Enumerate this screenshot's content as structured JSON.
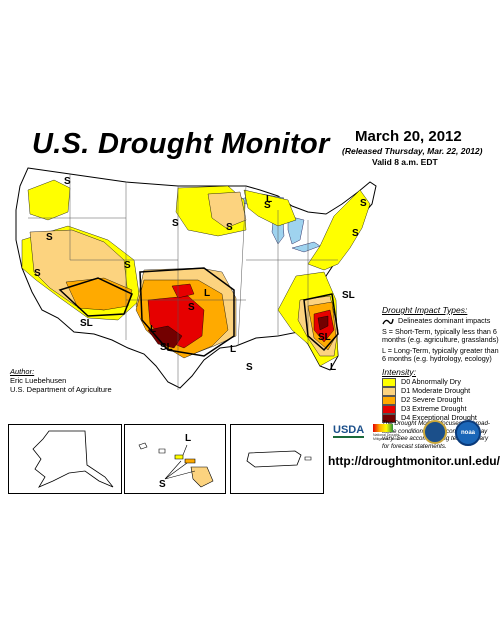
{
  "title": "U.S. Drought Monitor",
  "date": "March 20, 2012",
  "released": "(Released Thursday, Mar. 22, 2012)",
  "valid": "Valid 8 a.m. EDT",
  "legend": {
    "impact_header": "Drought Impact Types:",
    "delineates": "Delineates dominant impacts",
    "short_term": "S = Short-Term, typically less than 6 months (e.g. agriculture, grasslands)",
    "long_term": "L = Long-Term, typically greater than 6 months (e.g. hydrology, ecology)",
    "intensity_header": "Intensity:",
    "intensity": [
      {
        "label": "D0 Abnormally Dry",
        "color": "#ffff00"
      },
      {
        "label": "D1 Moderate Drought",
        "color": "#fcd37f"
      },
      {
        "label": "D2 Severe Drought",
        "color": "#ffaa00"
      },
      {
        "label": "D3 Extreme Drought",
        "color": "#e60000"
      },
      {
        "label": "D4 Exceptional Drought",
        "color": "#730000"
      }
    ]
  },
  "note": "The Drought Monitor focuses on broad-scale conditions. Local conditions may vary. See accompanying text summary for forecast statements.",
  "author": {
    "label": "Author:",
    "name": "Eric Luebehusen",
    "org": "U.S. Department of Agriculture"
  },
  "url": "http://droughtmonitor.unl.edu/",
  "logos": {
    "usda": "USDA",
    "ndmc": "National Drought Mitigation Center",
    "noaa": "noaa"
  },
  "map_labels": {
    "s": "S",
    "l": "L",
    "sl": "SL"
  },
  "colors": {
    "water": "#9fd3ef",
    "border": "#000000",
    "state": "#555555"
  }
}
